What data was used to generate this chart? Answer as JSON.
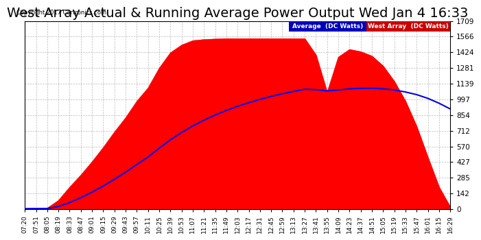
{
  "title": "West Array Actual & Running Average Power Output Wed Jan 4 16:33",
  "copyright": "Copyright 2017 Cartronics.com",
  "yticks": [
    0.0,
    142.4,
    284.8,
    427.1,
    569.5,
    711.9,
    854.3,
    996.7,
    1139.0,
    1281.4,
    1423.8,
    1566.2,
    1708.6
  ],
  "ymax": 1708.6,
  "ymin": 0.0,
  "legend_labels": [
    "Average  (DC Watts)",
    "West Array  (DC Watts)"
  ],
  "legend_bg_colors": [
    "#0000bb",
    "#cc0000"
  ],
  "title_fontsize": 14,
  "fig_bg_color": "#ffffff",
  "plot_bg_color": "#ffffff",
  "grid_color": "#aaaaaa",
  "fill_color": "#ff0000",
  "line_color": "#0000ee",
  "time_labels": [
    "07:20",
    "07:51",
    "08:05",
    "08:19",
    "08:33",
    "08:47",
    "09:01",
    "09:15",
    "09:29",
    "09:43",
    "09:57",
    "10:11",
    "10:25",
    "10:39",
    "10:53",
    "11:07",
    "11:21",
    "11:35",
    "11:49",
    "12:03",
    "12:17",
    "12:31",
    "12:45",
    "12:59",
    "13:13",
    "13:27",
    "13:41",
    "13:55",
    "14:09",
    "14:23",
    "14:37",
    "14:51",
    "15:05",
    "15:19",
    "15:33",
    "15:47",
    "16:01",
    "16:15",
    "16:29"
  ],
  "west_power": [
    5,
    8,
    10,
    80,
    200,
    310,
    430,
    560,
    700,
    830,
    980,
    1100,
    1280,
    1420,
    1490,
    1530,
    1540,
    1545,
    1548,
    1548,
    1548,
    1548,
    1548,
    1548,
    1548,
    1548,
    1400,
    1060,
    1380,
    1450,
    1430,
    1390,
    1300,
    1160,
    980,
    750,
    470,
    200,
    20
  ],
  "avg_power": [
    5,
    6,
    7,
    25,
    60,
    105,
    155,
    211,
    272,
    336,
    406,
    474,
    554,
    630,
    697,
    756,
    808,
    855,
    897,
    934,
    967,
    997,
    1024,
    1048,
    1069,
    1089,
    1085,
    1074,
    1082,
    1093,
    1097,
    1098,
    1093,
    1082,
    1064,
    1040,
    1006,
    962,
    910
  ]
}
